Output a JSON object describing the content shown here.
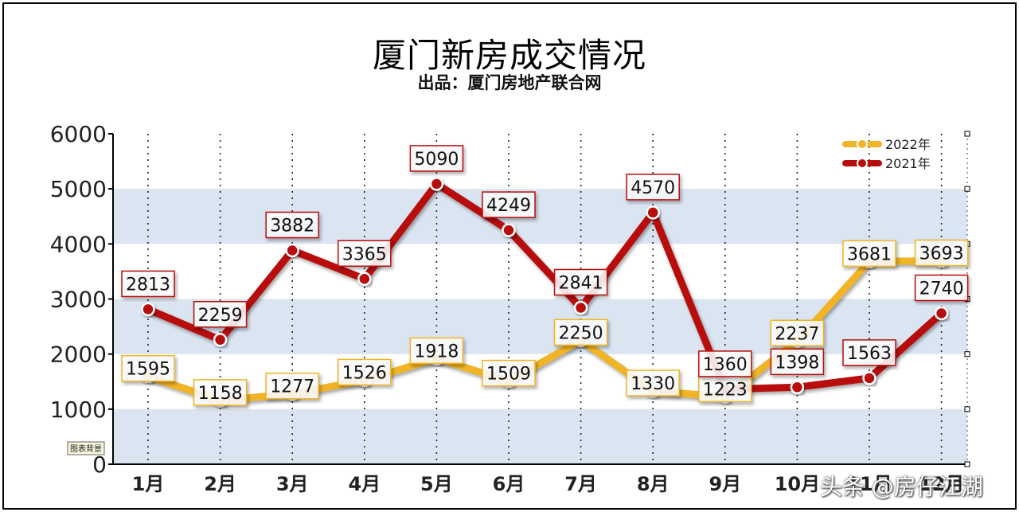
{
  "title": "厦门新房成交情况",
  "subtitle": "出品：厦门房地产联合网",
  "bg_tag": "图表背景",
  "watermark": "头条 @房仔江湖",
  "colors": {
    "series_2022": "#f0b428",
    "series_2021": "#b80d0d",
    "band": "#dbe5f1",
    "axis": "#000000"
  },
  "chart_data": {
    "type": "line",
    "categories": [
      "1月",
      "2月",
      "3月",
      "4月",
      "5月",
      "6月",
      "7月",
      "8月",
      "9月",
      "10月",
      "11月",
      "12月"
    ],
    "ylim": [
      0,
      6000
    ],
    "yticks": [
      0,
      1000,
      2000,
      3000,
      4000,
      5000,
      6000
    ],
    "grid": "horizontal bands, vertical dotted lines",
    "legend_position": "top-right",
    "series": [
      {
        "name": "2022年",
        "color": "#f0b428",
        "values": [
          1595,
          1158,
          1277,
          1526,
          1918,
          1509,
          2250,
          1330,
          1223,
          2237,
          3681,
          3693
        ]
      },
      {
        "name": "2021年",
        "color": "#b80d0d",
        "values": [
          2813,
          2259,
          3882,
          3365,
          5090,
          4249,
          2841,
          4570,
          1360,
          1398,
          1563,
          2740
        ]
      }
    ]
  }
}
